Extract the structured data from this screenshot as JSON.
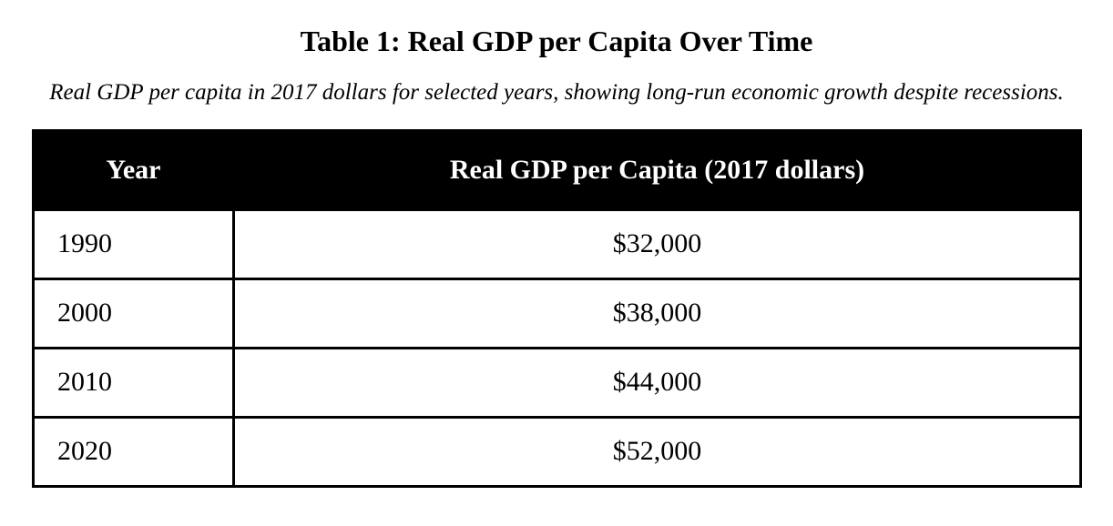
{
  "page": {
    "title": "Table 1: Real GDP per Capita Over Time",
    "subtitle": "Real GDP per capita in 2017 dollars for selected years, showing long-run economic growth despite recessions."
  },
  "table": {
    "headers": {
      "year": "Year",
      "value": "Real GDP per Capita (2017 dollars)"
    },
    "rows": [
      {
        "year": "1990",
        "value": "$32,000"
      },
      {
        "year": "2000",
        "value": "$38,000"
      },
      {
        "year": "2010",
        "value": "$44,000"
      },
      {
        "year": "2020",
        "value": "$52,000"
      }
    ],
    "colors": {
      "header_bg": "#000000",
      "header_text": "#ffffff",
      "border": "#000000",
      "body_bg": "#ffffff"
    }
  },
  "chart_data": {
    "type": "table",
    "title": "Table 1: Real GDP per Capita Over Time",
    "caption": "Real GDP per capita in 2017 dollars for selected years, showing long-run economic growth despite recessions.",
    "columns": [
      "Year",
      "Real GDP per Capita (2017 dollars)"
    ],
    "rows": [
      [
        "1990",
        "$32,000"
      ],
      [
        "2000",
        "$38,000"
      ],
      [
        "2010",
        "$44,000"
      ],
      [
        "2020",
        "$52,000"
      ]
    ],
    "years": [
      1990,
      2000,
      2010,
      2020
    ],
    "gdp_per_capita_2017_dollars": [
      32000,
      38000,
      44000,
      52000
    ]
  }
}
